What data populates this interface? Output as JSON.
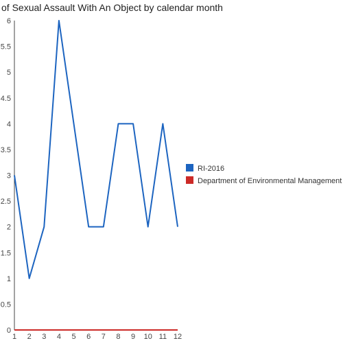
{
  "chart_data": {
    "type": "line",
    "title": "of Sexual Assault With An Object by calendar month",
    "xlabel": "",
    "ylabel": "",
    "x": [
      1,
      2,
      3,
      4,
      5,
      6,
      7,
      8,
      9,
      10,
      11,
      12
    ],
    "x_tick_labels": [
      "1",
      "2",
      "3",
      "4",
      "5",
      "6",
      "7",
      "8",
      "9",
      "10",
      "11",
      "12"
    ],
    "y_ticks": [
      0,
      0.5,
      1,
      1.5,
      2,
      2.5,
      3,
      3.5,
      4,
      4.5,
      5,
      5.5,
      6
    ],
    "y_tick_labels": [
      "0",
      "0.5",
      "1",
      "1.5",
      "2",
      "2.5",
      "3",
      "3.5",
      "4",
      "4.5",
      "5",
      "5.5",
      "6"
    ],
    "ylim": [
      0,
      6
    ],
    "xlim": [
      1,
      12
    ],
    "grid": false,
    "legend_position": "right",
    "series": [
      {
        "name": "RI-2016",
        "color": "#1c64c0",
        "values": [
          3,
          1,
          2,
          6,
          4,
          2,
          2,
          4,
          4,
          2,
          4,
          2
        ]
      },
      {
        "name": "Department of Environmental Management",
        "color": "#cc2a27",
        "values": [
          0,
          0,
          0,
          0,
          0,
          0,
          0,
          0,
          0,
          0,
          0,
          0
        ]
      }
    ]
  }
}
